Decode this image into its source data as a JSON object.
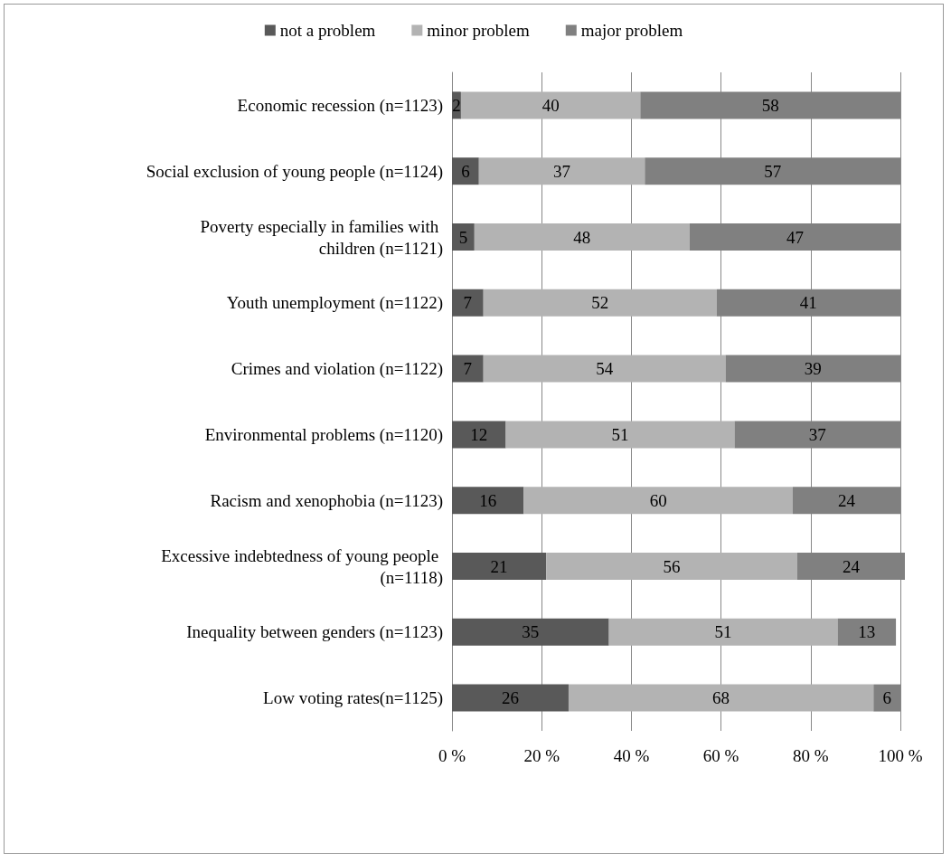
{
  "chart_data": {
    "type": "bar",
    "orientation": "horizontal",
    "stacked": true,
    "data_labels": true,
    "legend": "top",
    "grid": "x",
    "categories": [
      "Economic recession (n=1123)",
      "Social exclusion of young people (n=1124)",
      "Poverty especially in families with children (n=1121)",
      "Youth unemployment (n=1122)",
      "Crimes and violation (n=1122)",
      "Environmental problems (n=1120)",
      "Racism and xenophobia (n=1123)",
      "Excessive indebtedness of young people (n=1118)",
      "Inequality between genders (n=1123)",
      "Low voting rates(n=1125)"
    ],
    "series": [
      {
        "name": "not a problem",
        "color": "#595959",
        "values": [
          2,
          6,
          5,
          7,
          7,
          12,
          16,
          21,
          35,
          26
        ]
      },
      {
        "name": "minor problem",
        "color": "#b3b3b3",
        "values": [
          40,
          37,
          48,
          52,
          54,
          51,
          60,
          56,
          51,
          68
        ]
      },
      {
        "name": "major problem",
        "color": "#808080",
        "values": [
          58,
          57,
          47,
          41,
          39,
          37,
          24,
          24,
          13,
          6
        ]
      }
    ],
    "xlim": [
      0,
      101
    ],
    "xticks": [
      {
        "value": 0,
        "label": "0 %"
      },
      {
        "value": 20,
        "label": "20 %"
      },
      {
        "value": 40,
        "label": "40 %"
      },
      {
        "value": 60,
        "label": "60 %"
      },
      {
        "value": 80,
        "label": "80 %"
      },
      {
        "value": 100,
        "label": "100 %"
      }
    ]
  }
}
